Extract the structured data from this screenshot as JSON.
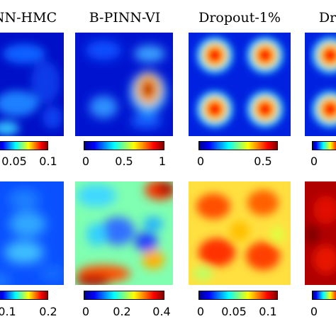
{
  "titles": [
    "NN-HMC",
    "B-PINN-VI",
    "Dropout-1%",
    "Dr"
  ],
  "colormap": [
    "#00008f",
    "#0000ff",
    "#0080ff",
    "#00ffff",
    "#80ff80",
    "#ffff00",
    "#ff8000",
    "#ff0000",
    "#800000"
  ],
  "chart_data": [
    {
      "type": "heatmap",
      "title": "NN-HMC",
      "row": 1,
      "colorbar_ticks": [
        "0.05",
        "0.1"
      ],
      "clim": [
        0,
        0.1
      ]
    },
    {
      "type": "heatmap",
      "title": "B-PINN-VI",
      "row": 1,
      "colorbar_ticks": [
        "0",
        "0.5",
        "1"
      ],
      "clim": [
        0,
        1
      ]
    },
    {
      "type": "heatmap",
      "title": "Dropout-1%",
      "row": 1,
      "colorbar_ticks": [
        "0",
        "0.5"
      ],
      "clim": [
        0,
        0.7
      ]
    },
    {
      "type": "heatmap",
      "title": "Dr",
      "row": 1,
      "colorbar_ticks": [
        "0"
      ],
      "clim": [
        0,
        1
      ]
    },
    {
      "type": "heatmap",
      "title": "NN-HMC",
      "row": 2,
      "colorbar_ticks": [
        "0.1",
        "0.2"
      ],
      "clim": [
        0,
        0.2
      ]
    },
    {
      "type": "heatmap",
      "title": "B-PINN-VI",
      "row": 2,
      "colorbar_ticks": [
        "0",
        "0.2",
        "0.4"
      ],
      "clim": [
        0,
        0.45
      ]
    },
    {
      "type": "heatmap",
      "title": "Dropout-1%",
      "row": 2,
      "colorbar_ticks": [
        "0",
        "0.05",
        "0.1"
      ],
      "clim": [
        0,
        0.12
      ]
    },
    {
      "type": "heatmap",
      "title": "Dr",
      "row": 2,
      "colorbar_ticks": [
        "0"
      ],
      "clim": [
        0,
        1
      ]
    }
  ]
}
